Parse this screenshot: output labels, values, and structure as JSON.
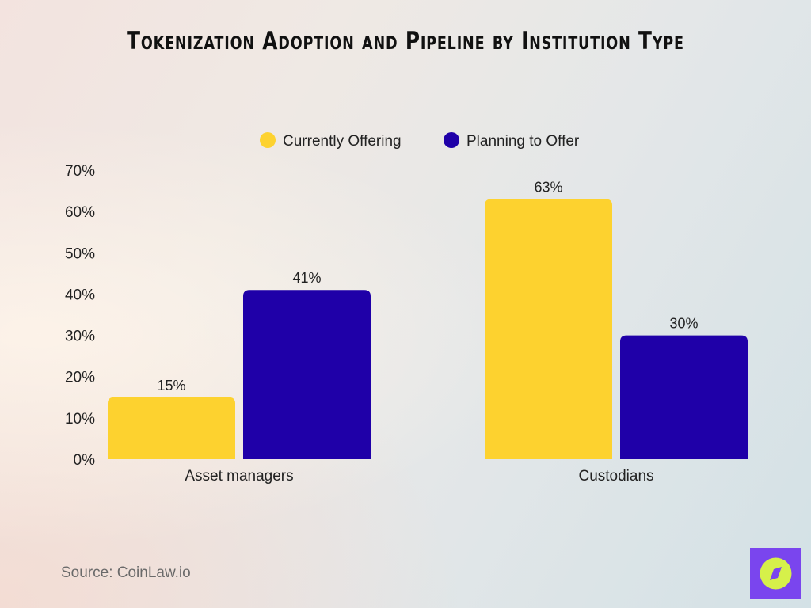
{
  "chart_data": {
    "type": "bar",
    "title": "Tokenization Adoption and Pipeline by Institution Type",
    "categories": [
      "Asset managers",
      "Custodians"
    ],
    "series": [
      {
        "name": "Currently Offering",
        "values": [
          15,
          63
        ],
        "color": "#fdd22f"
      },
      {
        "name": "Planning to Offer",
        "values": [
          41,
          30
        ],
        "color": "#1f00a8"
      }
    ],
    "data_labels": [
      [
        "15%",
        "63%"
      ],
      [
        "41%",
        "30%"
      ]
    ],
    "ylim": [
      0,
      70
    ],
    "yticks": [
      "0%",
      "10%",
      "20%",
      "30%",
      "40%",
      "50%",
      "60%",
      "70%"
    ],
    "xlabel": "",
    "ylabel": "",
    "grid": false,
    "legend": "top-center"
  },
  "source": "Source: CoinLaw.io",
  "logo": {
    "icon": "compass-icon",
    "bg": "#7a45ee",
    "fg": "#d6f04a"
  }
}
